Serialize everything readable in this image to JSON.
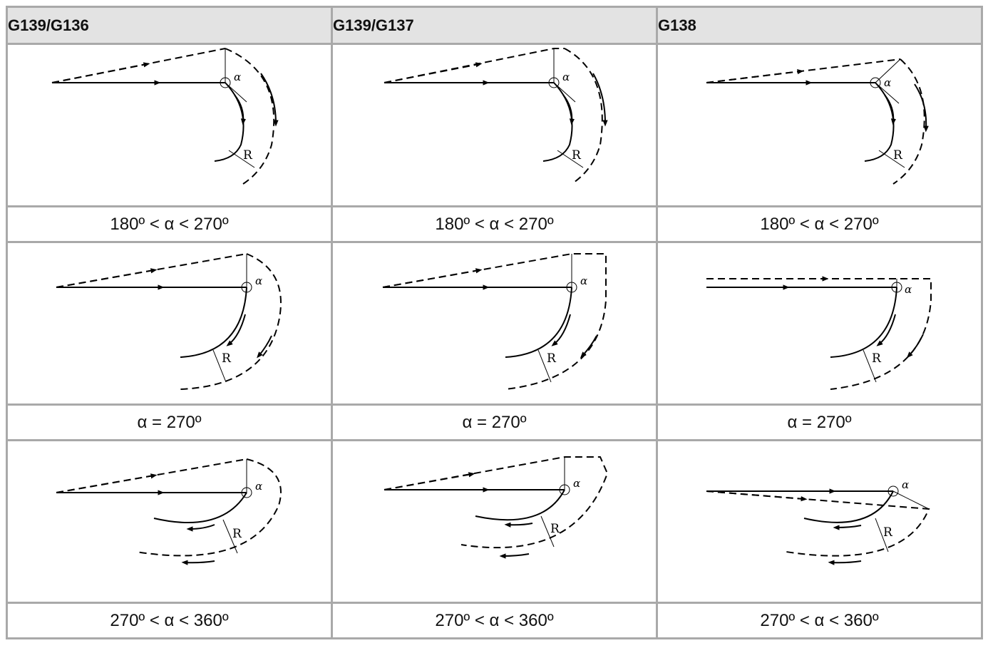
{
  "headers": [
    "G139/G136",
    "G139/G137",
    "G138"
  ],
  "labels": {
    "row0": "180º < α < 270º",
    "row1": "α = 270º",
    "row2": "270º < α < 360º"
  },
  "symbols": {
    "alpha": "α",
    "radius": "R"
  }
}
